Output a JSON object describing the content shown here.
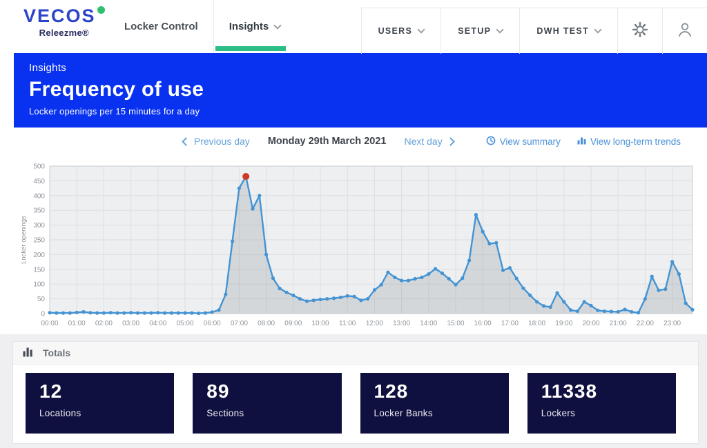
{
  "brand": {
    "name": "VECOS",
    "subtitle": "Releezme®"
  },
  "navbar": {
    "tabs": [
      {
        "label": "Locker Control",
        "active": false
      },
      {
        "label": "Insights",
        "active": true
      }
    ],
    "menus": [
      {
        "label": "USERS"
      },
      {
        "label": "SETUP"
      },
      {
        "label": "DWH TEST"
      }
    ],
    "icons": [
      "gear-icon",
      "user-icon"
    ]
  },
  "banner": {
    "eyebrow": "Insights",
    "title": "Frequency of use",
    "subtitle": "Locker openings per 15 minutes for a day",
    "bg_color": "#0832f0"
  },
  "toolbar": {
    "prev_label": "Previous day",
    "date_label": "Monday 29th March 2021",
    "next_label": "Next day",
    "summary_label": "View summary",
    "summary_icon": "clock-icon",
    "trends_label": "View long-term trends",
    "trends_icon": "bar-chart-icon"
  },
  "chart_data": {
    "type": "area",
    "title": "",
    "xlabel": "",
    "ylabel": "Locker openings",
    "ylim": [
      0,
      500
    ],
    "ytick_step": 50,
    "grid": true,
    "x_start": "00:00",
    "x_interval_minutes": 15,
    "xtick_labels": [
      "00:00",
      "01:00",
      "02:00",
      "03:00",
      "04:00",
      "05:00",
      "06:00",
      "07:00",
      "08:00",
      "09:00",
      "10:00",
      "11:00",
      "12:00",
      "13:00",
      "14:00",
      "15:00",
      "16:00",
      "17:00",
      "18:00",
      "19:00",
      "20:00",
      "21:00",
      "22:00",
      "23:00"
    ],
    "values": [
      3,
      2,
      2,
      2,
      4,
      6,
      3,
      2,
      2,
      3,
      2,
      2,
      3,
      2,
      2,
      2,
      3,
      2,
      2,
      2,
      2,
      2,
      1,
      2,
      5,
      12,
      65,
      245,
      425,
      465,
      355,
      400,
      200,
      120,
      85,
      72,
      62,
      50,
      42,
      45,
      48,
      50,
      52,
      55,
      60,
      58,
      45,
      50,
      80,
      98,
      140,
      123,
      112,
      112,
      118,
      123,
      134,
      152,
      137,
      118,
      98,
      120,
      180,
      335,
      278,
      237,
      240,
      147,
      155,
      119,
      86,
      62,
      40,
      26,
      22,
      70,
      40,
      12,
      8,
      40,
      27,
      11,
      8,
      7,
      6,
      14,
      6,
      3,
      50,
      126,
      79,
      83,
      176,
      134,
      35,
      13
    ],
    "highlight": {
      "time": "07:15",
      "index": 29,
      "value": 465,
      "color": "#ce3a27"
    },
    "colors": {
      "line": "#4493d3",
      "fill": "rgba(125,130,136,0.22)",
      "plot_bg": "#edeff1",
      "grid": "#dcdee1",
      "axis_text": "#8d9298"
    }
  },
  "totals": {
    "header": "Totals",
    "header_icon": "bar-chart-icon",
    "card_bg": "#101040",
    "cards": [
      {
        "value": "12",
        "label": "Locations"
      },
      {
        "value": "89",
        "label": "Sections"
      },
      {
        "value": "128",
        "label": "Locker Banks"
      },
      {
        "value": "11338",
        "label": "Lockers"
      }
    ]
  }
}
